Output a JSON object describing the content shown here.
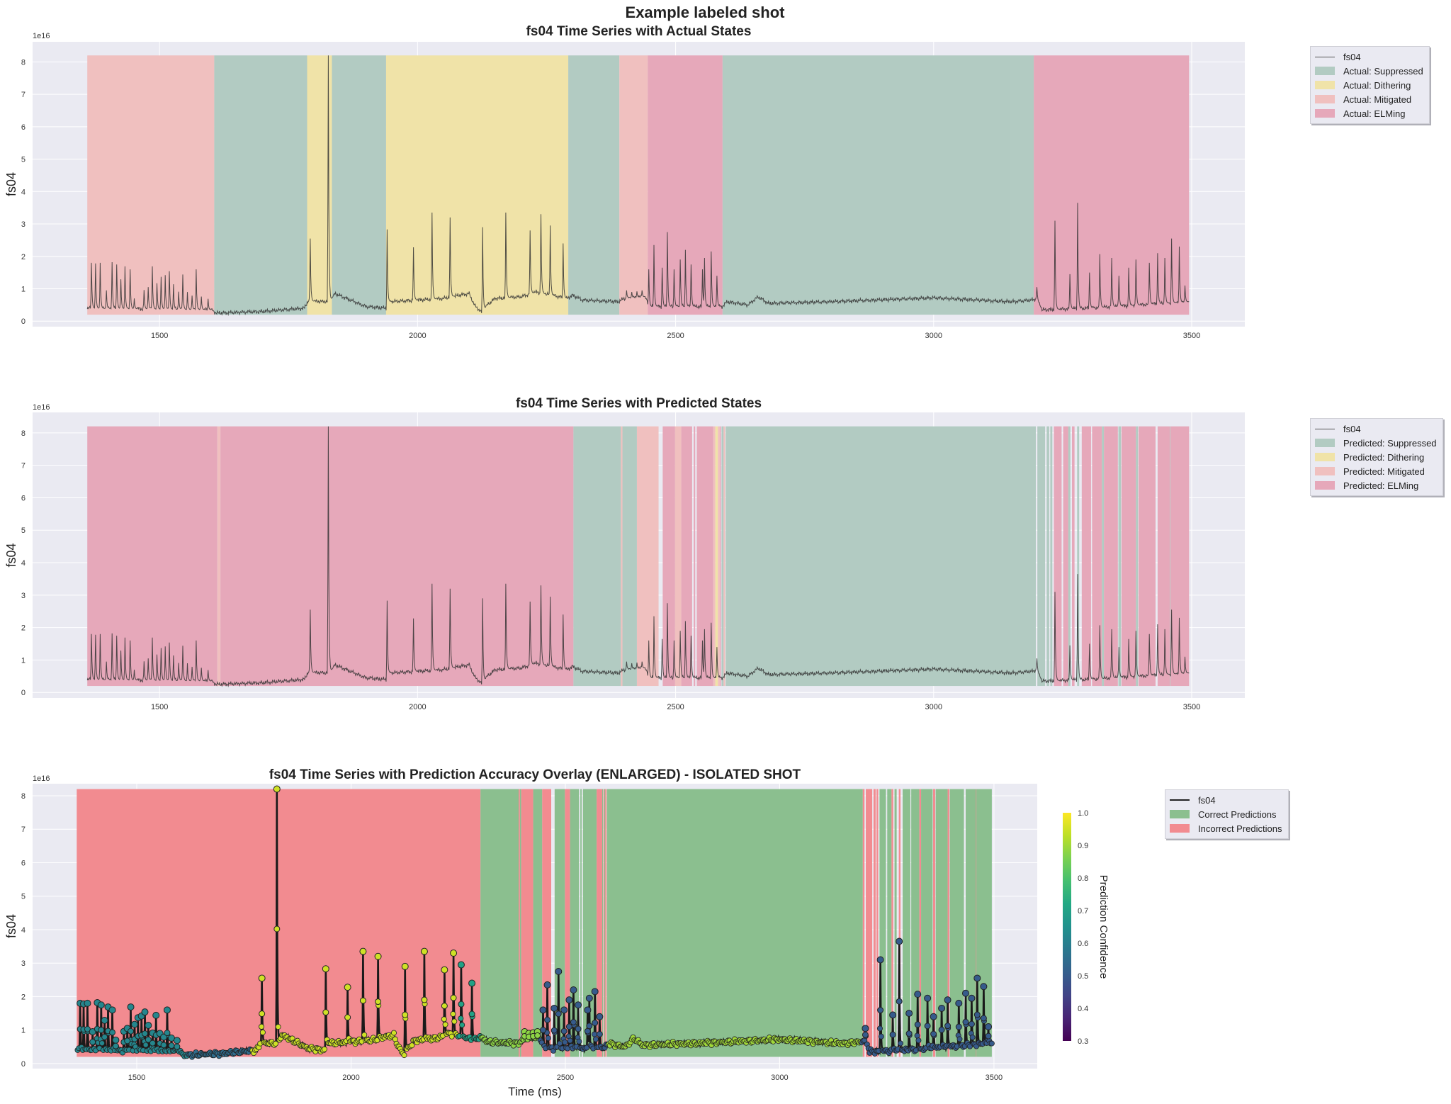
{
  "figure_title": "Example labeled shot",
  "colors": {
    "Suppressed": "#b2cbc2",
    "Dithering": "#f0e3a8",
    "Mitigated": "#f0c0bf",
    "ELMing": "#e6a8ba",
    "correct": "#8bbf8f",
    "incorrect": "#f28b90",
    "axes_bg": "#eaeaf2",
    "grid": "#ffffff"
  },
  "legends": {
    "actual": [
      "fs04",
      "Actual: Suppressed",
      "Actual: Dithering",
      "Actual: Mitigated",
      "Actual: ELMing"
    ],
    "predicted": [
      "fs04",
      "Predicted: Suppressed",
      "Predicted: Dithering",
      "Predicted: Mitigated",
      "Predicted: ELMing"
    ],
    "accuracy": [
      "fs04",
      "Correct Predictions",
      "Incorrect Predictions"
    ]
  },
  "chart_data": [
    {
      "type": "line",
      "title": "fs04 Time Series with Actual States",
      "ylabel": "fs04",
      "offset_text": "1e16",
      "xlim": [
        1254,
        3603
      ],
      "ylim": [
        -0.17,
        8.62
      ],
      "xticks": [
        1500,
        2000,
        2500,
        3000,
        3500
      ],
      "yticks": [
        0,
        1,
        2,
        3,
        4,
        5,
        6,
        7,
        8
      ],
      "grid": true,
      "legend_placement": "outside-right",
      "segments_key": "actual_states"
    },
    {
      "type": "line",
      "title": "fs04 Time Series with Predicted States",
      "ylabel": "fs04",
      "offset_text": "1e16",
      "xlim": [
        1254,
        3603
      ],
      "ylim": [
        -0.17,
        8.63
      ],
      "xticks": [
        1500,
        2000,
        2500,
        3000,
        3500
      ],
      "yticks": [
        0,
        1,
        2,
        3,
        4,
        5,
        6,
        7,
        8
      ],
      "grid": true,
      "legend_placement": "outside-right",
      "segments_key": "predicted_states"
    },
    {
      "type": "scatter",
      "title": "fs04 Time Series with Prediction Accuracy Overlay (ENLARGED) - ISOLATED SHOT",
      "ylabel": "fs04",
      "xlabel": "Time (ms)",
      "offset_text": "1e16",
      "xlim": [
        1257,
        3601
      ],
      "ylim": [
        -0.15,
        8.36
      ],
      "xticks": [
        1500,
        2000,
        2500,
        3000,
        3500
      ],
      "yticks": [
        0,
        1,
        2,
        3,
        4,
        5,
        6,
        7,
        8
      ],
      "grid": true,
      "legend_placement": "outside-right",
      "colorbar": {
        "label": "Prediction Confidence",
        "range": [
          0.3,
          1.0
        ],
        "ticks": [
          "0.3",
          "0.4",
          "0.5",
          "0.6",
          "0.7",
          "0.8",
          "0.9",
          "1.0"
        ],
        "colormap": "viridis"
      }
    }
  ],
  "state_band": [
    0.2,
    8.2
  ],
  "actual_states": [
    [
      "Mitigated",
      1360,
      1606
    ],
    [
      "Suppressed",
      1606,
      1786
    ],
    [
      "Dithering",
      1786,
      1834
    ],
    [
      "Suppressed",
      1834,
      1939
    ],
    [
      "Dithering",
      1939,
      2292
    ],
    [
      "Suppressed",
      2292,
      2391
    ],
    [
      "Mitigated",
      2391,
      2446
    ],
    [
      "ELMing",
      2446,
      2591
    ],
    [
      "Suppressed",
      2591,
      3194
    ],
    [
      "ELMing",
      3194,
      3495
    ]
  ],
  "predicted_states": [
    [
      "ELMing",
      1360,
      1612
    ],
    [
      "Mitigated",
      1612,
      1618
    ],
    [
      "ELMing",
      1618,
      2302
    ],
    [
      "Suppressed",
      2302,
      2394
    ],
    [
      "Mitigated",
      2394,
      2397
    ],
    [
      "Suppressed",
      2397,
      2425
    ],
    [
      "Mitigated",
      2425,
      2467
    ],
    [
      "ELMing",
      2475,
      2499
    ],
    [
      "Mitigated",
      2499,
      2511
    ],
    [
      "ELMing",
      2511,
      2532
    ],
    [
      "ELMing",
      2535,
      2538
    ],
    [
      "ELMing",
      2541,
      2573
    ],
    [
      "Mitigated",
      2573,
      2577
    ],
    [
      "Dithering",
      2577,
      2582
    ],
    [
      "Mitigated",
      2582,
      2586
    ],
    [
      "ELMing",
      2586,
      2588
    ],
    [
      "Suppressed",
      2589,
      2593
    ],
    [
      "Mitigated",
      2593,
      2596
    ],
    [
      "Suppressed",
      2597,
      3198
    ],
    [
      "Suppressed",
      3201,
      3216
    ],
    [
      "Suppressed",
      3219,
      3224
    ],
    [
      "Suppressed",
      3226,
      3230
    ],
    [
      "ELMing",
      3233,
      3248
    ],
    [
      "ELMing",
      3251,
      3261
    ],
    [
      "Suppressed",
      3261,
      3265
    ],
    [
      "ELMing",
      3268,
      3273
    ],
    [
      "Suppressed",
      3278,
      3282
    ],
    [
      "ELMing",
      3287,
      3305
    ],
    [
      "ELMing",
      3307,
      3326
    ],
    [
      "Suppressed",
      3326,
      3330
    ],
    [
      "ELMing",
      3330,
      3357
    ],
    [
      "Suppressed",
      3358,
      3363
    ],
    [
      "ELMing",
      3364,
      3392
    ],
    [
      "Suppressed",
      3392,
      3396
    ],
    [
      "ELMing",
      3397,
      3430
    ],
    [
      "ELMing",
      3434,
      3458
    ],
    [
      "Suppressed",
      3458,
      3459
    ],
    [
      "ELMing",
      3459,
      3495
    ]
  ],
  "fs04_baseline": [
    [
      1360,
      0.4
    ],
    [
      1600,
      0.35
    ],
    [
      1610,
      0.25
    ],
    [
      1700,
      0.3
    ],
    [
      1780,
      0.4
    ],
    [
      1788,
      0.62
    ],
    [
      1830,
      0.6
    ],
    [
      1840,
      0.85
    ],
    [
      1900,
      0.45
    ],
    [
      1939,
      0.4
    ],
    [
      1945,
      0.6
    ],
    [
      2000,
      0.65
    ],
    [
      2050,
      0.7
    ],
    [
      2080,
      0.8
    ],
    [
      2100,
      0.85
    ],
    [
      2110,
      0.5
    ],
    [
      2125,
      0.25
    ],
    [
      2135,
      0.5
    ],
    [
      2150,
      0.7
    ],
    [
      2200,
      0.75
    ],
    [
      2230,
      0.9
    ],
    [
      2260,
      0.8
    ],
    [
      2290,
      0.7
    ],
    [
      2300,
      0.8
    ],
    [
      2320,
      0.65
    ],
    [
      2390,
      0.6
    ],
    [
      2400,
      0.7
    ],
    [
      2440,
      0.75
    ],
    [
      2450,
      0.45
    ],
    [
      2590,
      0.45
    ],
    [
      2600,
      0.6
    ],
    [
      2640,
      0.5
    ],
    [
      2660,
      0.75
    ],
    [
      2680,
      0.55
    ],
    [
      2800,
      0.6
    ],
    [
      3000,
      0.72
    ],
    [
      3150,
      0.6
    ],
    [
      3190,
      0.65
    ],
    [
      3200,
      0.7
    ],
    [
      3210,
      0.35
    ],
    [
      3300,
      0.4
    ],
    [
      3495,
      0.6
    ]
  ],
  "fs04_spikes": [
    [
      1368,
      1.8
    ],
    [
      1376,
      1.78
    ],
    [
      1385,
      1.8
    ],
    [
      1397,
      0.95
    ],
    [
      1408,
      1.82
    ],
    [
      1417,
      1.75
    ],
    [
      1425,
      1.29
    ],
    [
      1433,
      1.69
    ],
    [
      1443,
      1.6
    ],
    [
      1451,
      0.7
    ],
    [
      1470,
      0.96
    ],
    [
      1478,
      1.05
    ],
    [
      1486,
      1.69
    ],
    [
      1495,
      1.17
    ],
    [
      1503,
      1.37
    ],
    [
      1511,
      1.42
    ],
    [
      1519,
      1.54
    ],
    [
      1527,
      1.14
    ],
    [
      1537,
      0.91
    ],
    [
      1545,
      1.44
    ],
    [
      1554,
      0.9
    ],
    [
      1563,
      0.79
    ],
    [
      1571,
      1.6
    ],
    [
      1581,
      0.76
    ],
    [
      1594,
      0.69
    ],
    [
      1792,
      2.55
    ],
    [
      1827,
      8.2
    ],
    [
      1941,
      2.83
    ],
    [
      1992,
      2.28
    ],
    [
      2028,
      3.35
    ],
    [
      2063,
      3.2
    ],
    [
      2126,
      2.9
    ],
    [
      2171,
      3.35
    ],
    [
      2218,
      2.8
    ],
    [
      2239,
      3.3
    ],
    [
      2257,
      2.95
    ],
    [
      2282,
      2.4
    ],
    [
      2405,
      0.95
    ],
    [
      2415,
      0.9
    ],
    [
      2425,
      0.92
    ],
    [
      2435,
      0.95
    ],
    [
      2448,
      1.6
    ],
    [
      2458,
      2.35
    ],
    [
      2474,
      1.65
    ],
    [
      2484,
      2.75
    ],
    [
      2497,
      1.6
    ],
    [
      2509,
      1.9
    ],
    [
      2519,
      2.2
    ],
    [
      2530,
      1.75
    ],
    [
      2552,
      1.6
    ],
    [
      2556,
      1.95
    ],
    [
      2569,
      2.15
    ],
    [
      2580,
      1.4
    ],
    [
      3200,
      1.05
    ],
    [
      3235,
      3.1
    ],
    [
      3264,
      1.45
    ],
    [
      3279,
      3.65
    ],
    [
      3302,
      1.5
    ],
    [
      3322,
      2.07
    ],
    [
      3345,
      1.95
    ],
    [
      3359,
      1.4
    ],
    [
      3378,
      1.65
    ],
    [
      3392,
      1.9
    ],
    [
      3418,
      1.8
    ],
    [
      3434,
      2.1
    ],
    [
      3448,
      1.95
    ],
    [
      3461,
      2.55
    ],
    [
      3476,
      2.3
    ],
    [
      3487,
      1.1
    ]
  ],
  "confidence_by_time": [
    [
      1360,
      1620,
      0.62
    ],
    [
      1620,
      1770,
      0.55
    ],
    [
      1770,
      2250,
      0.95
    ],
    [
      2250,
      2302,
      0.7
    ],
    [
      2302,
      2440,
      0.88
    ],
    [
      2440,
      2600,
      0.5
    ],
    [
      2600,
      3190,
      0.9
    ],
    [
      3190,
      3495,
      0.5
    ]
  ]
}
